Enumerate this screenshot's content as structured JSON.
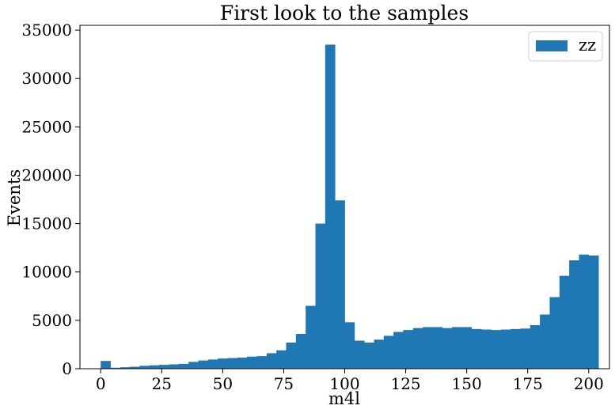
{
  "chart_data": {
    "type": "bar",
    "title": "First look to the samples",
    "xlabel": "m4l",
    "ylabel": "Events",
    "xlim": [
      -8.5,
      208.5
    ],
    "ylim": [
      0,
      35500
    ],
    "xticks": [
      0,
      25,
      50,
      75,
      100,
      125,
      150,
      175,
      200
    ],
    "yticks": [
      0,
      5000,
      10000,
      15000,
      20000,
      25000,
      30000,
      35000
    ],
    "bin_width": 4,
    "bin_edges_start": 0,
    "grid": false,
    "legend": {
      "position": "top-right"
    },
    "series": [
      {
        "name": "zz",
        "color": "#1f77b4",
        "values": [
          800,
          100,
          150,
          200,
          300,
          350,
          400,
          450,
          500,
          700,
          850,
          950,
          1050,
          1100,
          1150,
          1250,
          1300,
          1600,
          1900,
          2700,
          3600,
          6500,
          15000,
          33500,
          17400,
          4800,
          2900,
          2700,
          3000,
          3400,
          3800,
          4000,
          4200,
          4300,
          4300,
          4200,
          4300,
          4300,
          4100,
          4050,
          4000,
          4050,
          4100,
          4150,
          4500,
          5600,
          7400,
          9600,
          11200,
          11800,
          11700
        ]
      }
    ]
  }
}
